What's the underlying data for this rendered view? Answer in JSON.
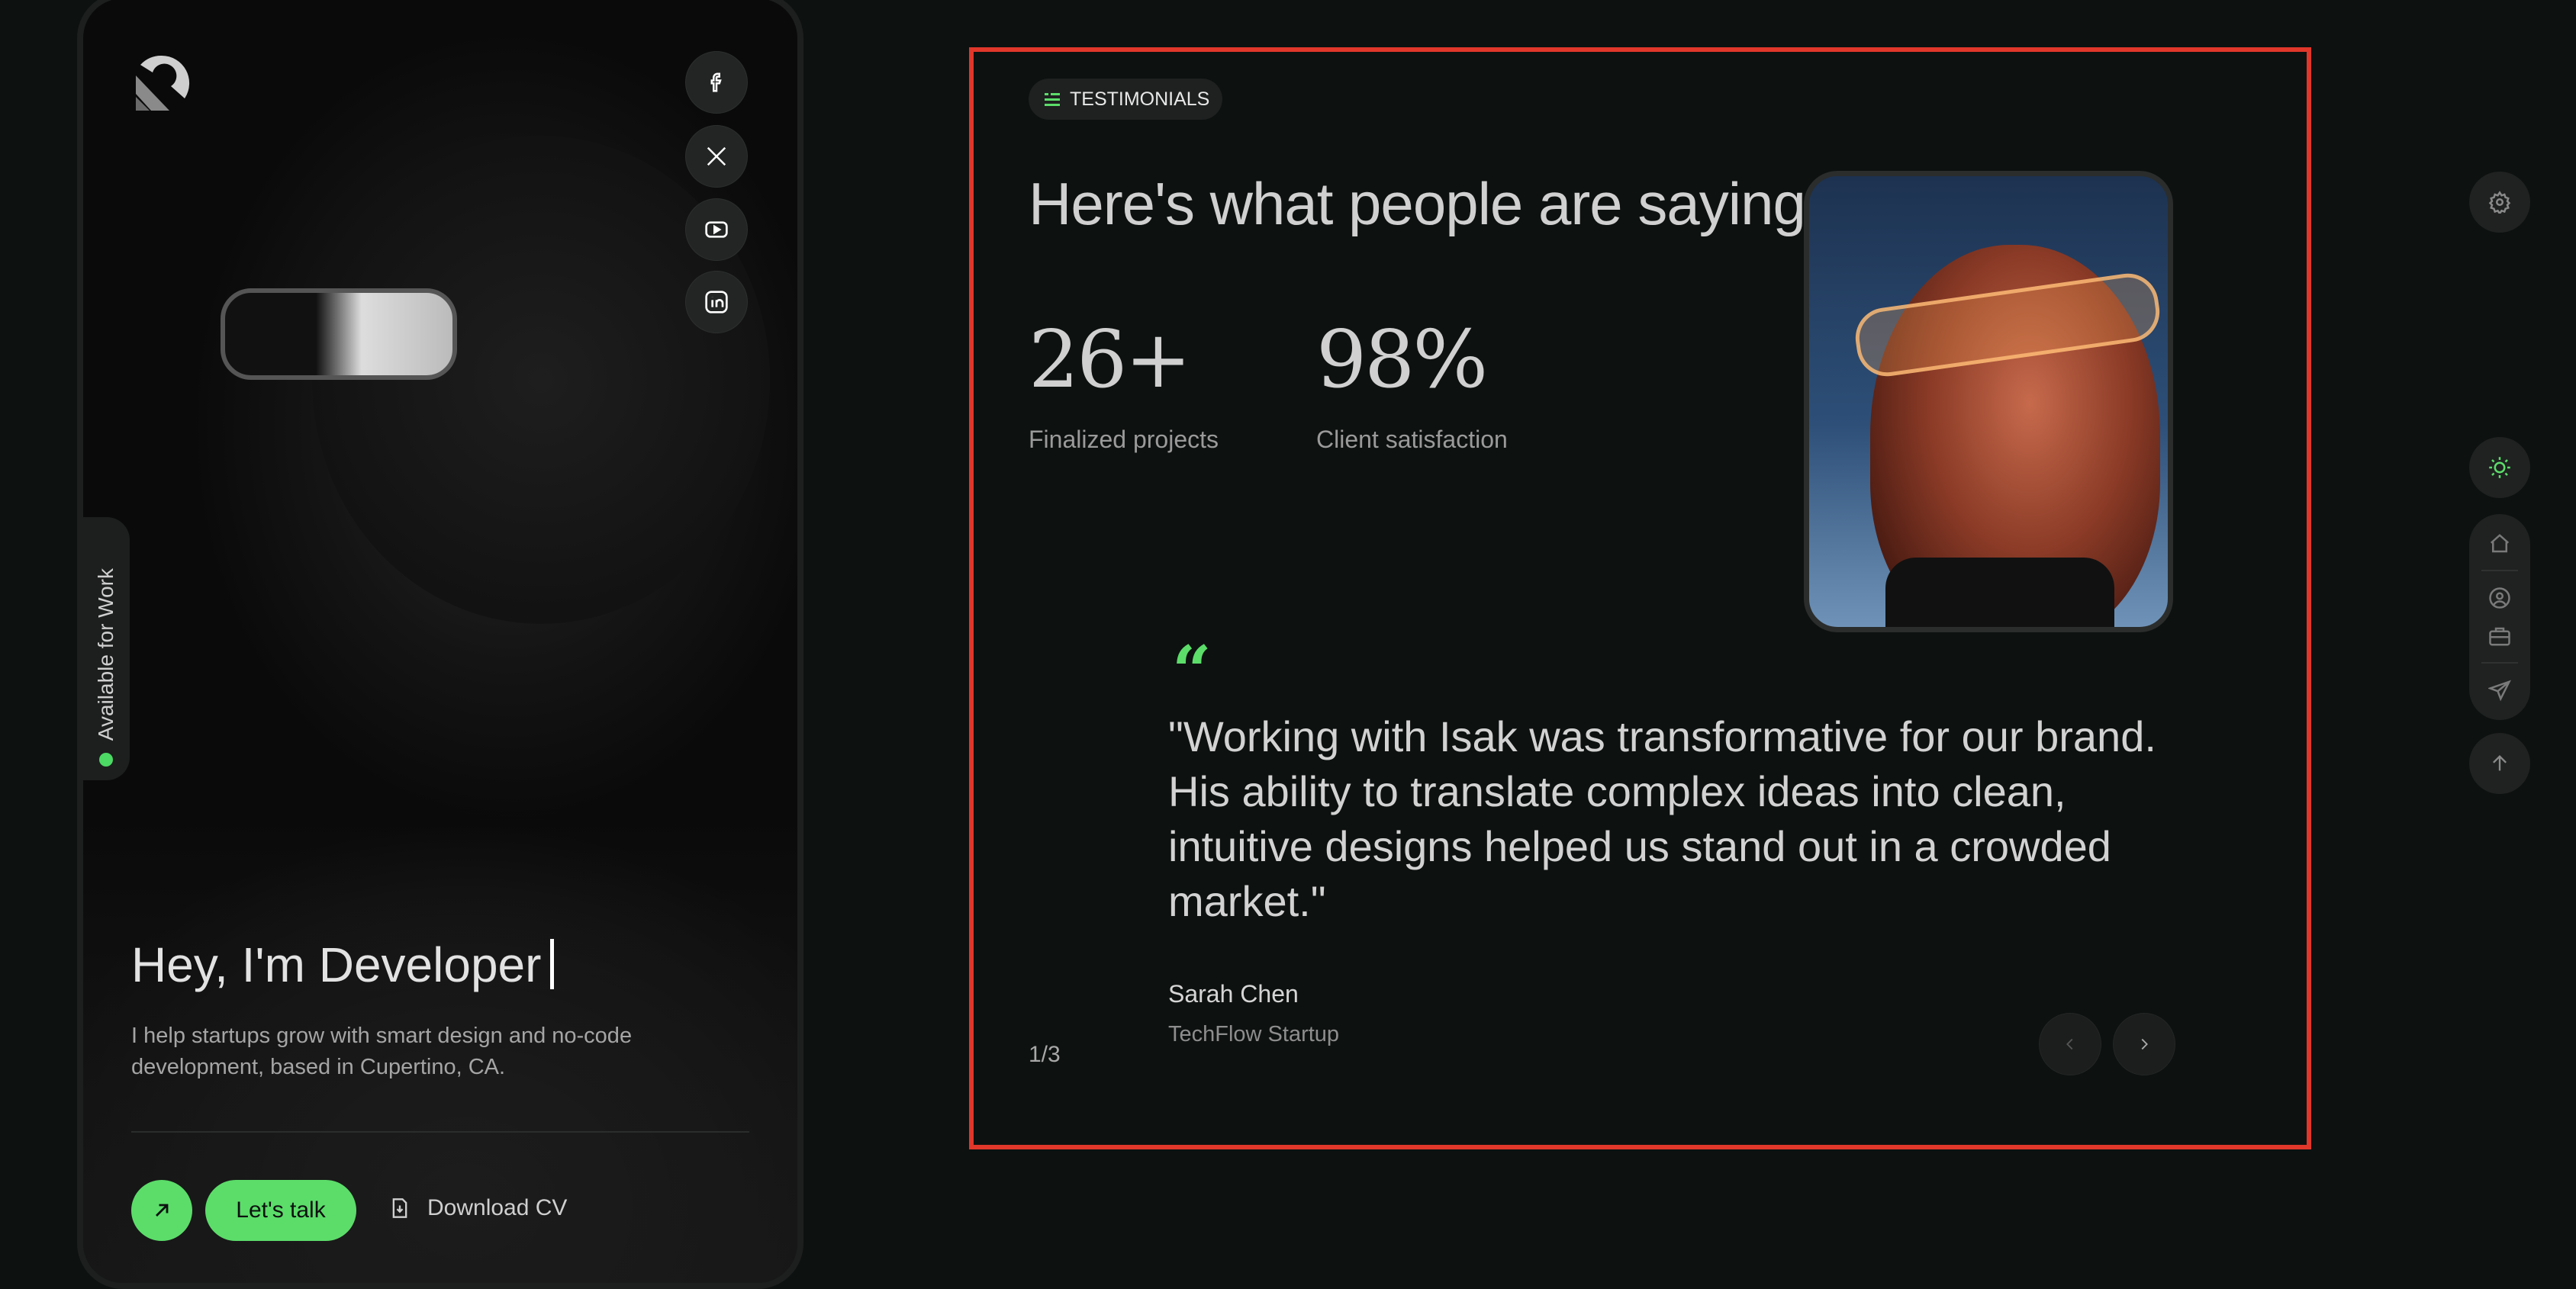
{
  "profile_card": {
    "hero_title": "Hey, I'm Developer",
    "hero_description": "I help startups grow with smart design and no-code development, based in Cupertino, CA.",
    "availability": "Available for Work",
    "social_icons": [
      "facebook-icon",
      "x-icon",
      "youtube-icon",
      "linkedin-icon"
    ],
    "cta": {
      "talk_label": "Let's talk",
      "download_label": "Download CV"
    }
  },
  "testimonials": {
    "badge": "TESTIMONIALS",
    "heading": "Here's what people are saying",
    "stats": [
      {
        "value": "26+",
        "label": "Finalized projects"
      },
      {
        "value": "98%",
        "label": "Client satisfaction"
      }
    ],
    "quote": "\"Working with Isak was transformative for our brand. His ability to translate complex ideas into clean, intuitive designs helped us stand out in a crowded market.\"",
    "author": "Sarah Chen",
    "company": "TechFlow Startup",
    "counter": "1/3"
  },
  "rail": {
    "icons": [
      "gear-icon",
      "sun-icon",
      "home-icon",
      "user-icon",
      "briefcase-icon",
      "send-icon",
      "arrow-up-icon"
    ]
  },
  "colors": {
    "accent": "#5cdd6a",
    "background": "#0d1110",
    "highlight_frame": "#e0372a"
  }
}
